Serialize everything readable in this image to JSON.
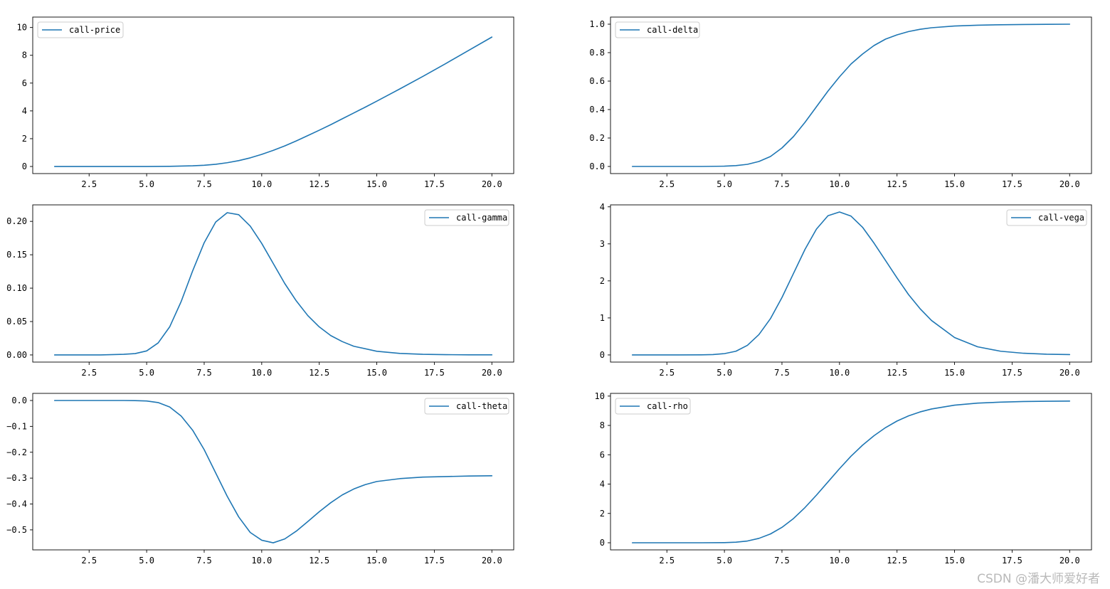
{
  "colors": {
    "line": "#1f77b4",
    "axes": "#000000",
    "legend_border": "#cccccc",
    "background": "#ffffff"
  },
  "watermark": "CSDN @潘大师爱好者",
  "chart_data": [
    {
      "type": "line",
      "legend": "call-price",
      "legend_loc": "upper left",
      "xlim": [
        0.05,
        20.95
      ],
      "ylim": [
        -0.51,
        10.75
      ],
      "xticks": [
        2.5,
        5.0,
        7.5,
        10.0,
        12.5,
        15.0,
        17.5,
        20.0
      ],
      "xticklabels": [
        "2.5",
        "5.0",
        "7.5",
        "10.0",
        "12.5",
        "15.0",
        "17.5",
        "20.0"
      ],
      "yticks": [
        0,
        2,
        4,
        6,
        8,
        10
      ],
      "yticklabels": [
        "0",
        "2",
        "4",
        "6",
        "8",
        "10"
      ],
      "grid": false,
      "series": [
        {
          "name": "call-price",
          "x": [
            1,
            2,
            3,
            4,
            5,
            6,
            6.5,
            7,
            7.5,
            8,
            8.5,
            9,
            9.5,
            10,
            10.5,
            11,
            11.5,
            12,
            12.5,
            13,
            13.5,
            14,
            14.5,
            15,
            16,
            17,
            18,
            19,
            20
          ],
          "y": [
            0,
            0,
            0,
            0,
            0,
            0.01,
            0.03,
            0.05,
            0.09,
            0.16,
            0.27,
            0.42,
            0.62,
            0.87,
            1.16,
            1.48,
            1.84,
            2.22,
            2.61,
            3.01,
            3.43,
            3.85,
            4.27,
            4.7,
            5.58,
            6.48,
            7.41,
            8.36,
            9.31
          ]
        }
      ]
    },
    {
      "type": "line",
      "legend": "call-delta",
      "legend_loc": "upper left",
      "xlim": [
        0.05,
        20.95
      ],
      "ylim": [
        -0.05,
        1.05
      ],
      "xticks": [
        2.5,
        5.0,
        7.5,
        10.0,
        12.5,
        15.0,
        17.5,
        20.0
      ],
      "xticklabels": [
        "2.5",
        "5.0",
        "7.5",
        "10.0",
        "12.5",
        "15.0",
        "17.5",
        "20.0"
      ],
      "yticks": [
        0,
        0.2,
        0.4,
        0.6,
        0.8,
        1.0
      ],
      "yticklabels": [
        "0.0",
        "0.2",
        "0.4",
        "0.6",
        "0.8",
        "1.0"
      ],
      "grid": false,
      "series": [
        {
          "name": "call-delta",
          "x": [
            1,
            2,
            3,
            4,
            5,
            5.5,
            6,
            6.5,
            7,
            7.5,
            8,
            8.5,
            9,
            9.5,
            10,
            10.5,
            11,
            11.5,
            12,
            12.5,
            13,
            13.5,
            14,
            15,
            16,
            17,
            18,
            19,
            20
          ],
          "y": [
            0,
            0,
            0,
            0,
            0.002,
            0.006,
            0.015,
            0.035,
            0.07,
            0.13,
            0.21,
            0.31,
            0.42,
            0.53,
            0.63,
            0.72,
            0.79,
            0.85,
            0.895,
            0.925,
            0.948,
            0.964,
            0.975,
            0.987,
            0.993,
            0.996,
            0.998,
            0.999,
            1.0
          ]
        }
      ]
    },
    {
      "type": "line",
      "legend": "call-gamma",
      "legend_loc": "upper right",
      "xlim": [
        0.05,
        20.95
      ],
      "ylim": [
        -0.0107,
        0.2247
      ],
      "xticks": [
        2.5,
        5.0,
        7.5,
        10.0,
        12.5,
        15.0,
        17.5,
        20.0
      ],
      "xticklabels": [
        "2.5",
        "5.0",
        "7.5",
        "10.0",
        "12.5",
        "15.0",
        "17.5",
        "20.0"
      ],
      "yticks": [
        0,
        0.05,
        0.1,
        0.15,
        0.2
      ],
      "yticklabels": [
        "0.00",
        "0.05",
        "0.10",
        "0.15",
        "0.20"
      ],
      "grid": false,
      "series": [
        {
          "name": "call-gamma",
          "x": [
            1,
            2,
            3,
            4,
            4.5,
            5,
            5.5,
            6,
            6.5,
            7,
            7.5,
            8,
            8.5,
            9,
            9.5,
            10,
            10.5,
            11,
            11.5,
            12,
            12.5,
            13,
            13.5,
            14,
            15,
            16,
            17,
            18,
            19,
            20
          ],
          "y": [
            0,
            0,
            0,
            0.001,
            0.002,
            0.006,
            0.018,
            0.042,
            0.08,
            0.126,
            0.168,
            0.199,
            0.213,
            0.21,
            0.193,
            0.167,
            0.137,
            0.107,
            0.081,
            0.059,
            0.042,
            0.029,
            0.02,
            0.013,
            0.0055,
            0.0023,
            0.0009,
            0.0004,
            0.0002,
            0.0001
          ]
        }
      ]
    },
    {
      "type": "line",
      "legend": "call-vega",
      "legend_loc": "upper right",
      "xlim": [
        0.05,
        20.95
      ],
      "ylim": [
        -0.193,
        4.053
      ],
      "xticks": [
        2.5,
        5.0,
        7.5,
        10.0,
        12.5,
        15.0,
        17.5,
        20.0
      ],
      "xticklabels": [
        "2.5",
        "5.0",
        "7.5",
        "10.0",
        "12.5",
        "15.0",
        "17.5",
        "20.0"
      ],
      "yticks": [
        0,
        1,
        2,
        3,
        4
      ],
      "yticklabels": [
        "0",
        "1",
        "2",
        "3",
        "4"
      ],
      "grid": false,
      "series": [
        {
          "name": "call-vega",
          "x": [
            1,
            2,
            3,
            4,
            4.5,
            5,
            5.5,
            6,
            6.5,
            7,
            7.5,
            8,
            8.5,
            9,
            9.5,
            10,
            10.5,
            11,
            11.5,
            12,
            12.5,
            13,
            13.5,
            14,
            15,
            16,
            17,
            18,
            19,
            20
          ],
          "y": [
            0,
            0,
            0,
            0.003,
            0.01,
            0.035,
            0.1,
            0.26,
            0.55,
            0.98,
            1.55,
            2.2,
            2.85,
            3.4,
            3.76,
            3.86,
            3.75,
            3.45,
            3.02,
            2.55,
            2.08,
            1.63,
            1.25,
            0.93,
            0.47,
            0.22,
            0.1,
            0.045,
            0.02,
            0.01
          ]
        }
      ]
    },
    {
      "type": "line",
      "legend": "call-theta",
      "legend_loc": "upper right",
      "xlim": [
        0.05,
        20.95
      ],
      "ylim": [
        -0.5773,
        0.0275
      ],
      "xticks": [
        2.5,
        5.0,
        7.5,
        10.0,
        12.5,
        15.0,
        17.5,
        20.0
      ],
      "xticklabels": [
        "2.5",
        "5.0",
        "7.5",
        "10.0",
        "12.5",
        "15.0",
        "17.5",
        "20.0"
      ],
      "yticks": [
        0,
        -0.1,
        -0.2,
        -0.3,
        -0.4,
        -0.5
      ],
      "yticklabels": [
        "0.0",
        "−0.1",
        "−0.2",
        "−0.3",
        "−0.4",
        "−0.5"
      ],
      "grid": false,
      "series": [
        {
          "name": "call-theta",
          "x": [
            1,
            2,
            3,
            4,
            4.5,
            5,
            5.5,
            6,
            6.5,
            7,
            7.5,
            8,
            8.5,
            9,
            9.5,
            10,
            10.5,
            11,
            11.5,
            12,
            12.5,
            13,
            13.5,
            14,
            14.5,
            15,
            16,
            17,
            18,
            19,
            20
          ],
          "y": [
            0,
            0,
            0,
            0,
            -0.0005,
            -0.002,
            -0.008,
            -0.025,
            -0.06,
            -0.115,
            -0.19,
            -0.28,
            -0.37,
            -0.45,
            -0.51,
            -0.54,
            -0.55,
            -0.535,
            -0.505,
            -0.468,
            -0.43,
            -0.395,
            -0.365,
            -0.342,
            -0.325,
            -0.313,
            -0.302,
            -0.296,
            -0.294,
            -0.292,
            -0.291
          ]
        }
      ]
    },
    {
      "type": "line",
      "legend": "call-rho",
      "legend_loc": "upper left",
      "xlim": [
        0.05,
        20.95
      ],
      "ylim": [
        -0.485,
        10.185
      ],
      "xticks": [
        2.5,
        5.0,
        7.5,
        10.0,
        12.5,
        15.0,
        17.5,
        20.0
      ],
      "xticklabels": [
        "2.5",
        "5.0",
        "7.5",
        "10.0",
        "12.5",
        "15.0",
        "17.5",
        "20.0"
      ],
      "yticks": [
        0,
        2,
        4,
        6,
        8,
        10
      ],
      "yticklabels": [
        "0",
        "2",
        "4",
        "6",
        "8",
        "10"
      ],
      "grid": false,
      "series": [
        {
          "name": "call-rho",
          "x": [
            1,
            2,
            3,
            4,
            5,
            5.5,
            6,
            6.5,
            7,
            7.5,
            8,
            8.5,
            9,
            9.5,
            10,
            10.5,
            11,
            11.5,
            12,
            12.5,
            13,
            13.5,
            14,
            15,
            16,
            17,
            18,
            19,
            20
          ],
          "y": [
            0,
            0,
            0,
            0,
            0.01,
            0.04,
            0.12,
            0.3,
            0.6,
            1.05,
            1.65,
            2.4,
            3.25,
            4.15,
            5.05,
            5.9,
            6.65,
            7.3,
            7.85,
            8.3,
            8.65,
            8.92,
            9.12,
            9.38,
            9.52,
            9.59,
            9.63,
            9.65,
            9.66
          ]
        }
      ]
    }
  ]
}
